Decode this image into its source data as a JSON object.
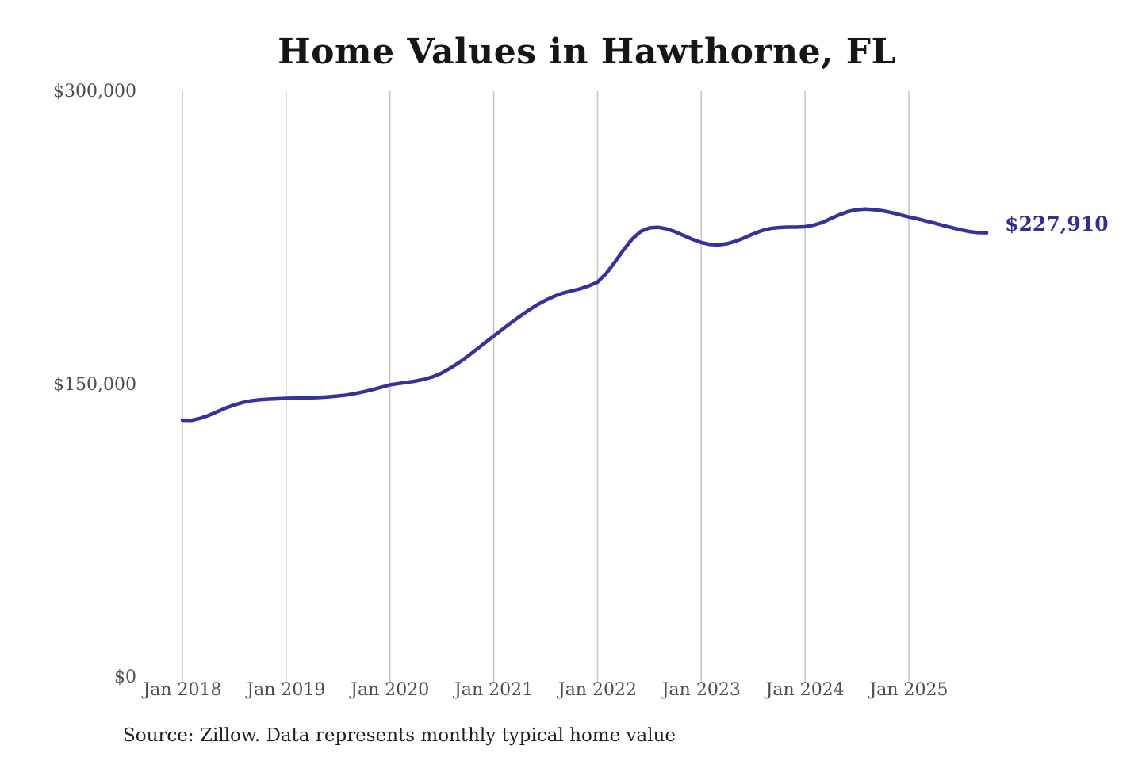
{
  "chart": {
    "title": "Home Values in Hawthorne, FL",
    "source_note": "Source: Zillow. Data represents monthly typical home value",
    "latest_value_label": "$227,910",
    "colors": {
      "line": "#37319e",
      "latest_label": "#312e9a",
      "gridline": "#c3c3c3",
      "axis_text": "#4d4d4d",
      "title_text": "#161616",
      "source_text": "#1e1e1e",
      "background": "#ffffff"
    }
  },
  "chart_data": {
    "type": "line",
    "title": "Home Values in Hawthorne, FL",
    "xlabel": "",
    "ylabel": "",
    "ylim": [
      0,
      300000
    ],
    "grid": "vertical-only",
    "legend": "none",
    "y_ticks": [
      {
        "value": 0,
        "label": "$0"
      },
      {
        "value": 150000,
        "label": "$150,000"
      },
      {
        "value": 300000,
        "label": "$300,000"
      }
    ],
    "x_tick_labels": [
      "Jan 2018",
      "Jan 2019",
      "Jan 2020",
      "Jan 2021",
      "Jan 2022",
      "Jan 2023",
      "Jan 2024",
      "Jan 2025"
    ],
    "latest_value": 227910,
    "latest_value_label": "$227,910",
    "series": [
      {
        "name": "Monthly typical home value",
        "color": "#37319e",
        "x": [
          "Jan 2018",
          "Feb 2018",
          "Mar 2018",
          "Apr 2018",
          "May 2018",
          "Jun 2018",
          "Jul 2018",
          "Aug 2018",
          "Sep 2018",
          "Oct 2018",
          "Nov 2018",
          "Dec 2018",
          "Jan 2019",
          "Feb 2019",
          "Mar 2019",
          "Apr 2019",
          "May 2019",
          "Jun 2019",
          "Jul 2019",
          "Aug 2019",
          "Sep 2019",
          "Oct 2019",
          "Nov 2019",
          "Dec 2019",
          "Jan 2020",
          "Feb 2020",
          "Mar 2020",
          "Apr 2020",
          "May 2020",
          "Jun 2020",
          "Jul 2020",
          "Aug 2020",
          "Sep 2020",
          "Oct 2020",
          "Nov 2020",
          "Dec 2020",
          "Jan 2021",
          "Feb 2021",
          "Mar 2021",
          "Apr 2021",
          "May 2021",
          "Jun 2021",
          "Jul 2021",
          "Aug 2021",
          "Sep 2021",
          "Oct 2021",
          "Nov 2021",
          "Dec 2021",
          "Jan 2022",
          "Feb 2022",
          "Mar 2022",
          "Apr 2022",
          "May 2022",
          "Jun 2022",
          "Jul 2022",
          "Aug 2022",
          "Sep 2022",
          "Oct 2022",
          "Nov 2022",
          "Dec 2022",
          "Jan 2023",
          "Feb 2023",
          "Mar 2023",
          "Apr 2023",
          "May 2023",
          "Jun 2023",
          "Jul 2023",
          "Aug 2023",
          "Sep 2023",
          "Oct 2023",
          "Nov 2023",
          "Dec 2023",
          "Jan 2024",
          "Feb 2024",
          "Mar 2024",
          "Apr 2024",
          "May 2024",
          "Jun 2024",
          "Jul 2024",
          "Aug 2024",
          "Sep 2024",
          "Oct 2024",
          "Nov 2024",
          "Dec 2024",
          "Jan 2025",
          "Feb 2025",
          "Mar 2025",
          "Apr 2025",
          "May 2025",
          "Jun 2025",
          "Jul 2025",
          "Aug 2025",
          "Sep 2025",
          "Oct 2025"
        ],
        "values": [
          131900,
          131800,
          132800,
          134300,
          136200,
          138100,
          139700,
          141000,
          141900,
          142400,
          142700,
          142900,
          143100,
          143200,
          143300,
          143400,
          143600,
          143900,
          144300,
          144800,
          145600,
          146500,
          147600,
          148800,
          150000,
          150700,
          151300,
          152000,
          152900,
          154200,
          156100,
          158600,
          161500,
          164700,
          168100,
          171600,
          175000,
          178400,
          181800,
          185000,
          188100,
          190900,
          193300,
          195400,
          197000,
          198100,
          199200,
          200700,
          202600,
          207000,
          212800,
          219000,
          224600,
          228600,
          230400,
          230700,
          229900,
          228400,
          226400,
          224500,
          222900,
          221900,
          221700,
          222300,
          223600,
          225400,
          227300,
          229000,
          230100,
          230600,
          230800,
          230800,
          231000,
          231800,
          233200,
          235200,
          237200,
          238800,
          239700,
          240000,
          239700,
          239100,
          238200,
          237100,
          236000,
          235000,
          233900,
          232800,
          231600,
          230500,
          229400,
          228500,
          228000,
          227910
        ]
      }
    ]
  }
}
